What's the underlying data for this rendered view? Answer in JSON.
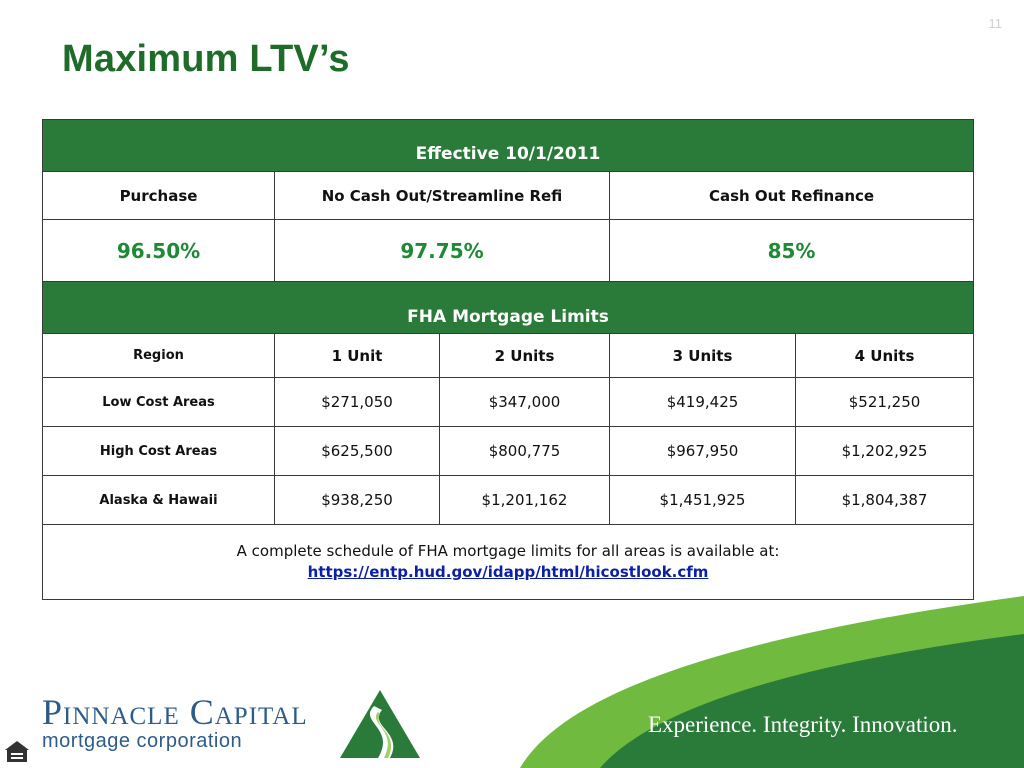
{
  "slide": {
    "page_number": "11",
    "title": "Maximum LTV’s"
  },
  "ltv_table": {
    "effective_banner": "Effective 10/1/2011",
    "headers": [
      "Purchase",
      "No Cash Out/Streamline Refi",
      "Cash Out Refinance"
    ],
    "values": [
      "96.50%",
      "97.75%",
      "85%"
    ]
  },
  "limits_table": {
    "banner": "FHA Mortgage Limits",
    "headers": [
      "Region",
      "1 Unit",
      "2 Units",
      "3 Units",
      "4 Units"
    ],
    "rows": [
      {
        "region": "Low Cost Areas",
        "cells": [
          "$271,050",
          "$347,000",
          "$419,425",
          "$521,250"
        ]
      },
      {
        "region": "High Cost Areas",
        "cells": [
          "$625,500",
          "$800,775",
          "$967,950",
          "$1,202,925"
        ]
      },
      {
        "region": "Alaska & Hawaii",
        "cells": [
          "$938,250",
          "$1,201,162",
          "$1,451,925",
          "$1,804,387"
        ]
      }
    ],
    "note": "A complete schedule of FHA mortgage limits for all areas is available at:",
    "link": "https://entp.hud.gov/idapp/html/hicostlook.cfm"
  },
  "footer": {
    "logo_name": "Pinnacle Capital",
    "logo_sub": "mortgage corporation",
    "tagline": "Experience. Integrity. Innovation.",
    "icons": [
      "pinnacle-logo-mark-icon",
      "equal-housing-opportunity-icon"
    ],
    "colors": {
      "brand_green": "#2a7a3a",
      "light_green": "#6fba3f",
      "brand_blue": "#2e5c8a"
    }
  }
}
